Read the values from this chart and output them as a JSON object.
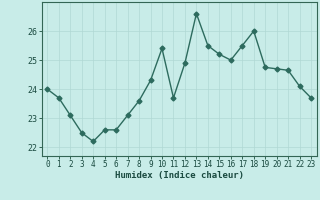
{
  "x": [
    0,
    1,
    2,
    3,
    4,
    5,
    6,
    7,
    8,
    9,
    10,
    11,
    12,
    13,
    14,
    15,
    16,
    17,
    18,
    19,
    20,
    21,
    22,
    23
  ],
  "y": [
    24.0,
    23.7,
    23.1,
    22.5,
    22.2,
    22.6,
    22.6,
    23.1,
    23.6,
    24.3,
    25.4,
    23.7,
    24.9,
    26.6,
    25.5,
    25.2,
    25.0,
    25.5,
    26.0,
    24.75,
    24.7,
    24.65,
    24.1,
    23.7
  ],
  "xlim": [
    -0.5,
    23.5
  ],
  "ylim": [
    21.7,
    27.0
  ],
  "yticks": [
    22,
    23,
    24,
    25,
    26
  ],
  "xticks": [
    0,
    1,
    2,
    3,
    4,
    5,
    6,
    7,
    8,
    9,
    10,
    11,
    12,
    13,
    14,
    15,
    16,
    17,
    18,
    19,
    20,
    21,
    22,
    23
  ],
  "xlabel": "Humidex (Indice chaleur)",
  "line_color": "#2d6b5e",
  "marker": "D",
  "marker_size": 2.5,
  "line_width": 1.0,
  "bg_color": "#c8ece8",
  "grid_color_major": "#b0d8d4",
  "grid_color_minor": "#d4f0ec",
  "axis_color": "#336655",
  "tick_label_color": "#1a4a40",
  "xlabel_color": "#1a4a40",
  "fig_bg": "#c8ece8",
  "tick_fontsize": 5.5,
  "xlabel_fontsize": 6.5
}
